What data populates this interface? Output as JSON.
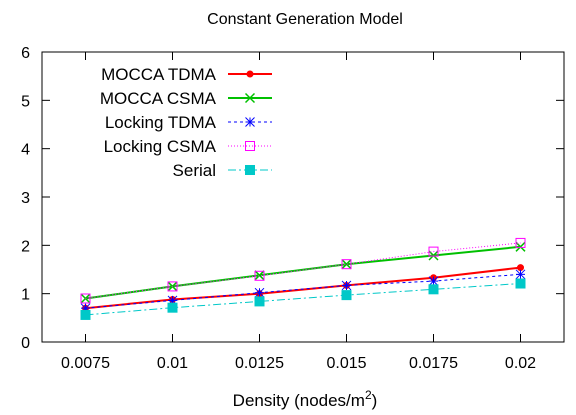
{
  "chart_data": {
    "type": "line",
    "title": "Constant Generation Model",
    "xlabel": "Density (nodes/m",
    "xlabel_sup": "2",
    "xlabel_close": ")",
    "ylabel": "",
    "x": [
      0.0075,
      0.01,
      0.0125,
      0.015,
      0.0175,
      0.02
    ],
    "x_tick_labels": [
      "0.0075",
      "0.01",
      "0.0125",
      "0.015",
      "0.0175",
      "0.02"
    ],
    "y_ticks": [
      0,
      1,
      2,
      3,
      4,
      5,
      6
    ],
    "xlim": [
      0.00625,
      0.02125
    ],
    "ylim": [
      0,
      6
    ],
    "grid": false,
    "legend_position": "top-left",
    "series": [
      {
        "name": "MOCCA TDMA",
        "color": "#ff0000",
        "dash": "",
        "marker": "dot",
        "width": 2,
        "values": [
          0.7,
          0.88,
          1.0,
          1.17,
          1.33,
          1.54
        ]
      },
      {
        "name": "MOCCA CSMA",
        "color": "#00c000",
        "dash": "",
        "marker": "x",
        "width": 2,
        "values": [
          0.9,
          1.15,
          1.38,
          1.61,
          1.79,
          1.97
        ]
      },
      {
        "name": "Locking TDMA",
        "color": "#0000ff",
        "dash": "3,3",
        "marker": "star",
        "width": 1,
        "values": [
          0.7,
          0.86,
          1.02,
          1.17,
          1.26,
          1.4
        ]
      },
      {
        "name": "Locking CSMA",
        "color": "#ff00ff",
        "dash": "1,2",
        "marker": "square-open",
        "width": 1,
        "values": [
          0.9,
          1.15,
          1.37,
          1.61,
          1.87,
          2.05
        ]
      },
      {
        "name": "Serial",
        "color": "#00c8c8",
        "dash": "8,3,2,3",
        "marker": "square-filled",
        "width": 1,
        "values": [
          0.56,
          0.71,
          0.84,
          0.97,
          1.09,
          1.21
        ]
      }
    ]
  }
}
